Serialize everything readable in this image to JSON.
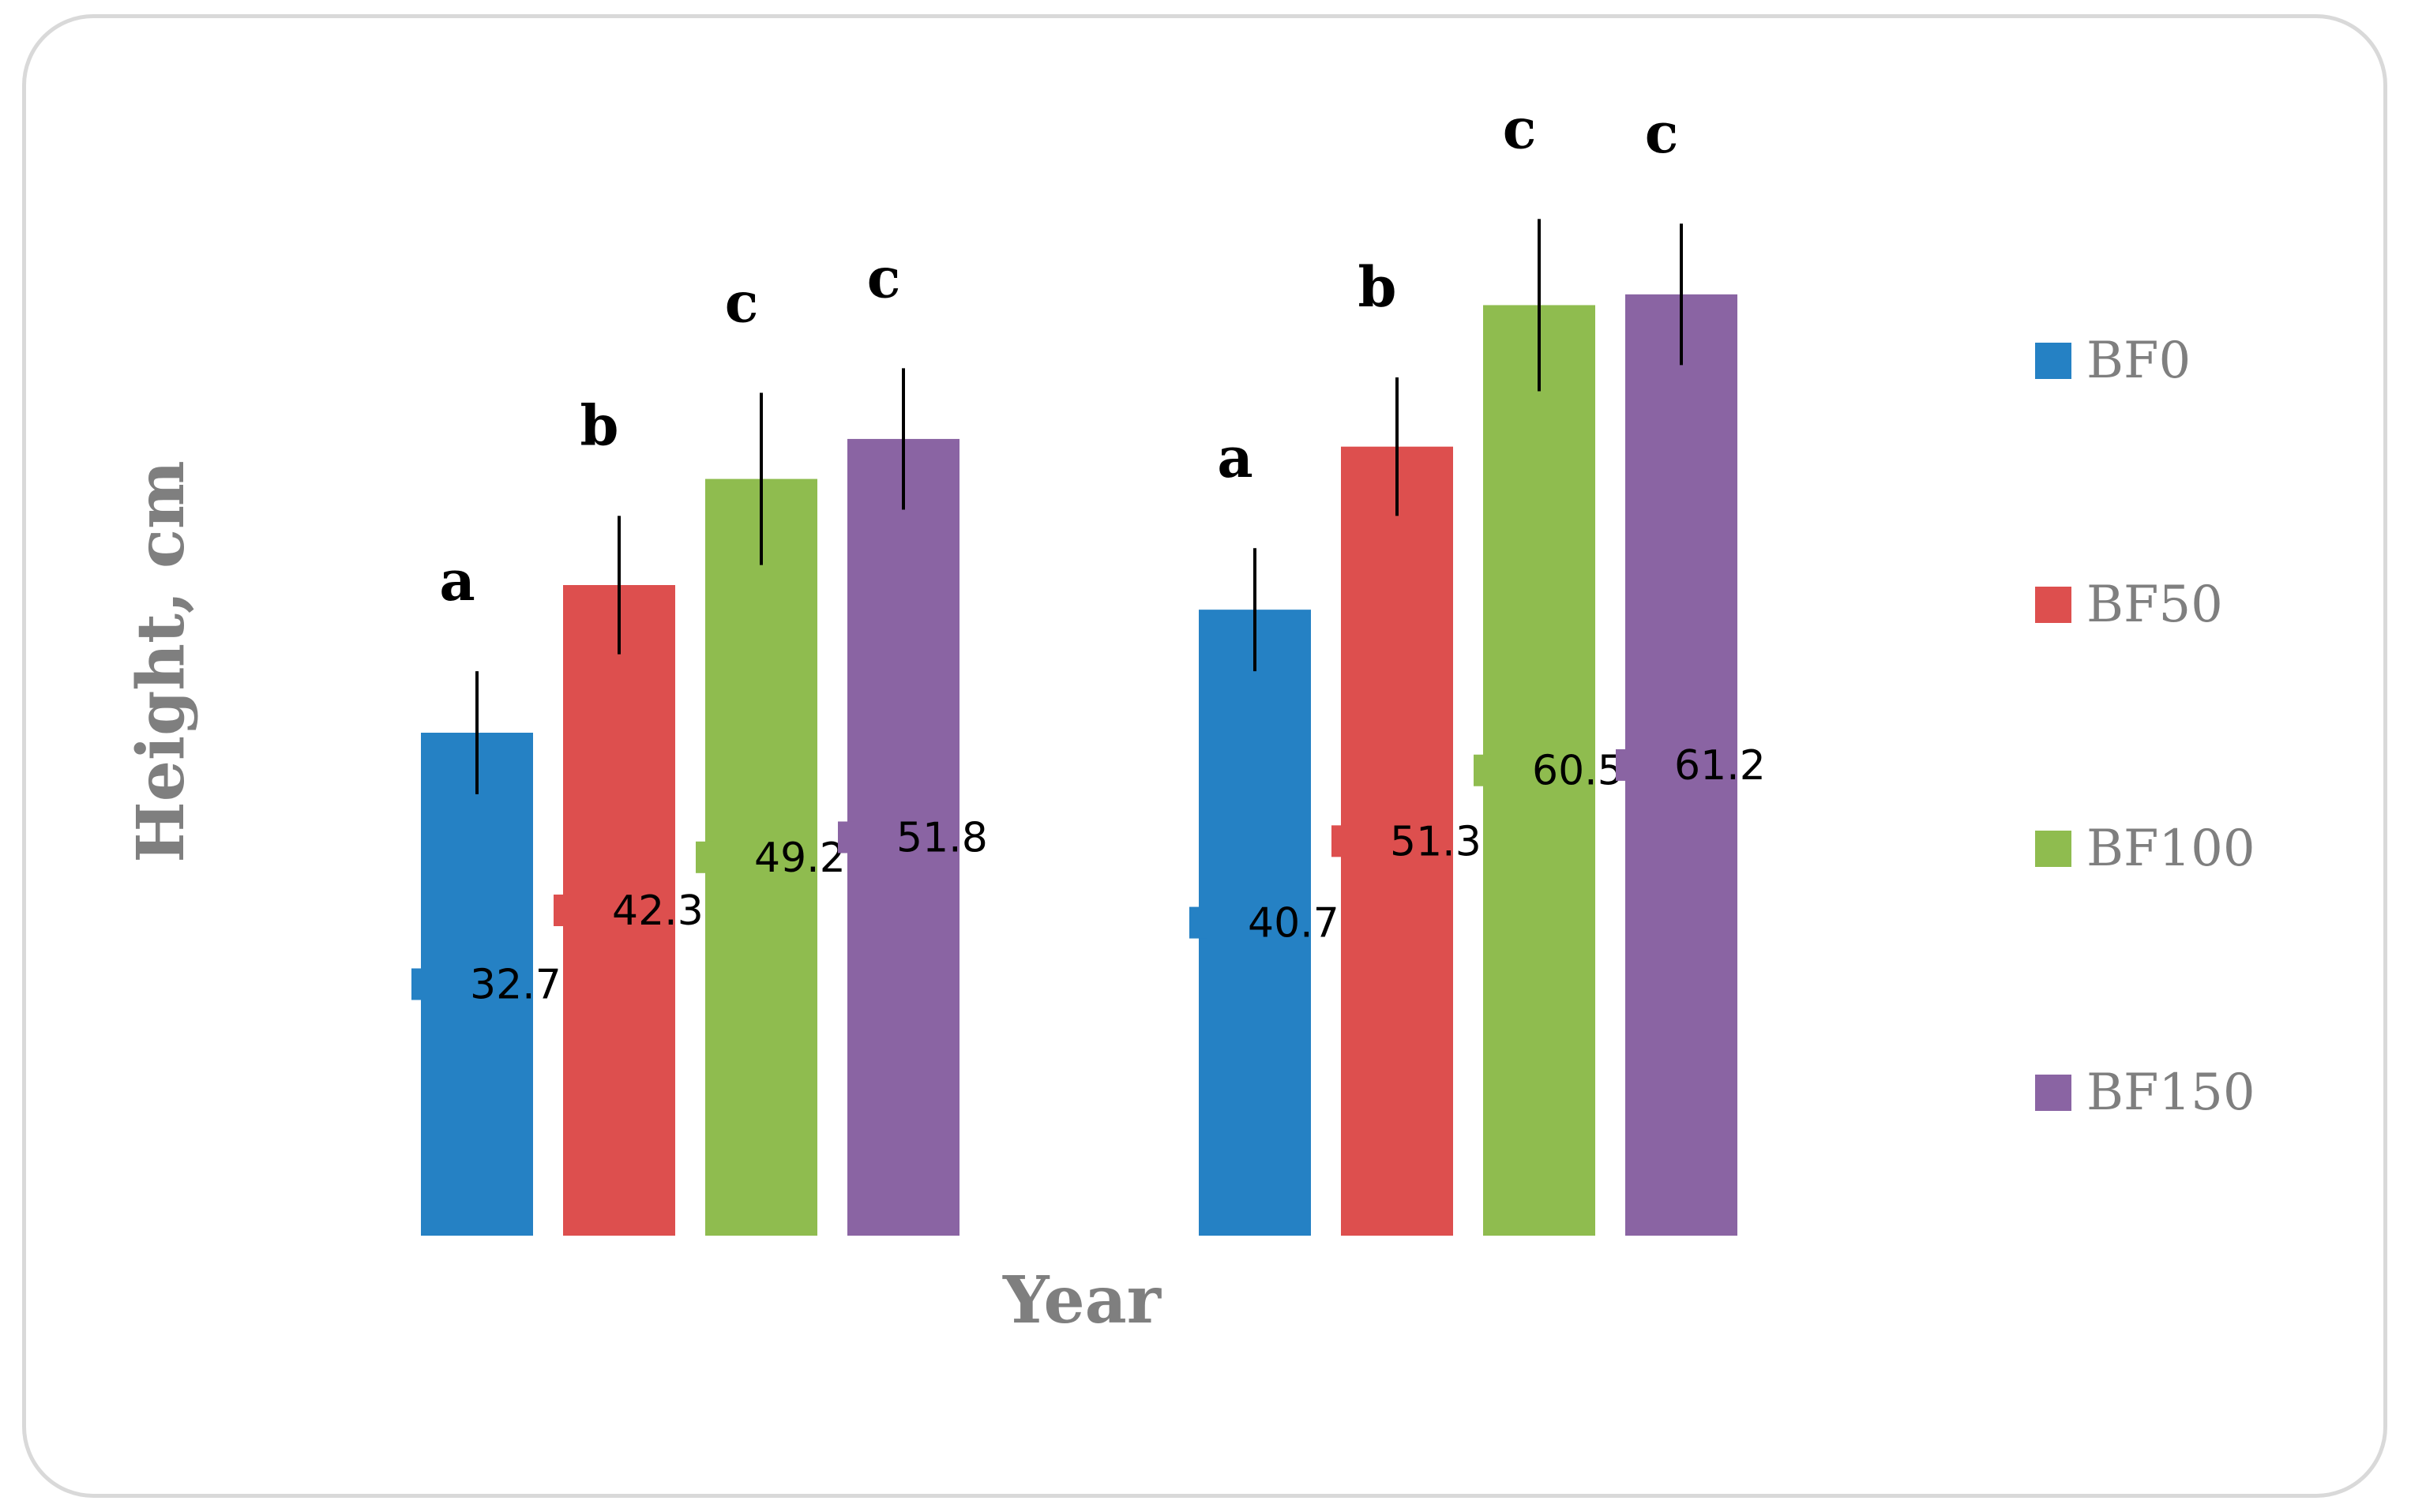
{
  "chart_data": {
    "type": "bar",
    "title": "",
    "xlabel": "Year",
    "ylabel": "Height, cm",
    "ylim": [
      0,
      68
    ],
    "grid": false,
    "legend_position": "right",
    "categories": [
      "",
      ""
    ],
    "series": [
      {
        "name": "BF0",
        "color": "#2581c4",
        "values": [
          32.7,
          40.7
        ],
        "errors": [
          4.0,
          4.0
        ],
        "letters": [
          "a",
          "a"
        ]
      },
      {
        "name": "BF50",
        "color": "#dd4f4e",
        "values": [
          42.3,
          51.3
        ],
        "errors": [
          4.5,
          4.5
        ],
        "letters": [
          "b",
          "b"
        ]
      },
      {
        "name": "BF100",
        "color": "#8fbc4f",
        "values": [
          49.2,
          60.5
        ],
        "errors": [
          5.6,
          5.6
        ],
        "letters": [
          "c",
          "c"
        ]
      },
      {
        "name": "BF150",
        "color": "#8a64a3",
        "values": [
          51.8,
          61.2
        ],
        "errors": [
          4.6,
          4.6
        ],
        "letters": [
          "c",
          "c"
        ]
      }
    ]
  }
}
